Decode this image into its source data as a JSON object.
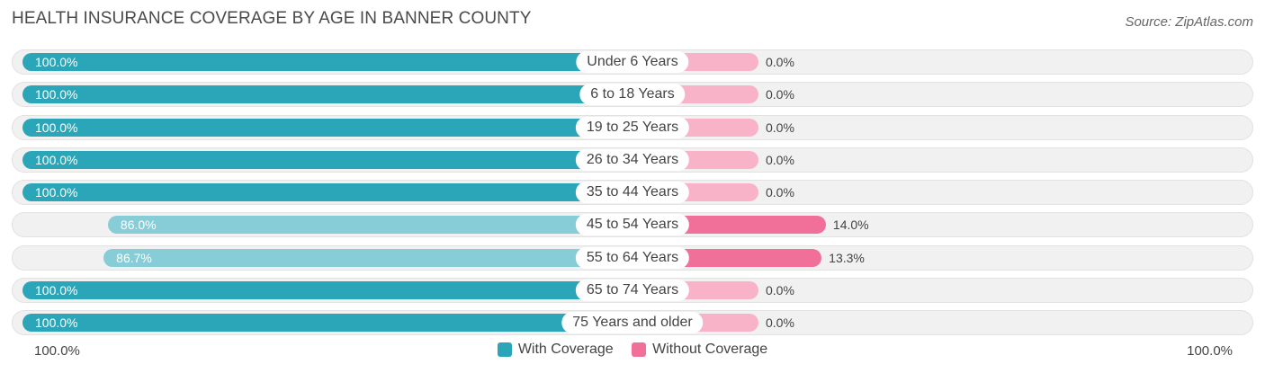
{
  "chart_data": {
    "type": "bar",
    "orientation": "horizontal-diverging",
    "title": "HEALTH INSURANCE COVERAGE BY AGE IN BANNER COUNTY",
    "source": "Source: ZipAtlas.com",
    "categories": [
      "Under 6 Years",
      "6 to 18 Years",
      "19 to 25 Years",
      "26 to 34 Years",
      "35 to 44 Years",
      "45 to 54 Years",
      "55 to 64 Years",
      "65 to 74 Years",
      "75 Years and older"
    ],
    "series": [
      {
        "name": "With Coverage",
        "values": [
          100.0,
          100.0,
          100.0,
          100.0,
          100.0,
          86.0,
          86.7,
          100.0,
          100.0
        ],
        "labels": [
          "100.0%",
          "100.0%",
          "100.0%",
          "100.0%",
          "100.0%",
          "86.0%",
          "86.7%",
          "100.0%",
          "100.0%"
        ]
      },
      {
        "name": "Without Coverage",
        "values": [
          0.0,
          0.0,
          0.0,
          0.0,
          0.0,
          14.0,
          13.3,
          0.0,
          0.0
        ],
        "labels": [
          "0.0%",
          "0.0%",
          "0.0%",
          "0.0%",
          "0.0%",
          "14.0%",
          "13.3%",
          "0.0%",
          "0.0%"
        ]
      }
    ],
    "xlim": [
      -100,
      100
    ],
    "axis_labels": {
      "left": "100.0%",
      "right": "100.0%"
    },
    "legend": {
      "position": "bottom-center",
      "items": [
        "With Coverage",
        "Without Coverage"
      ]
    },
    "colors": {
      "with_strong": "#2ba6b8",
      "with_light": "#86cdd8",
      "without_strong": "#f07099",
      "without_light": "#f8b3c8"
    }
  }
}
